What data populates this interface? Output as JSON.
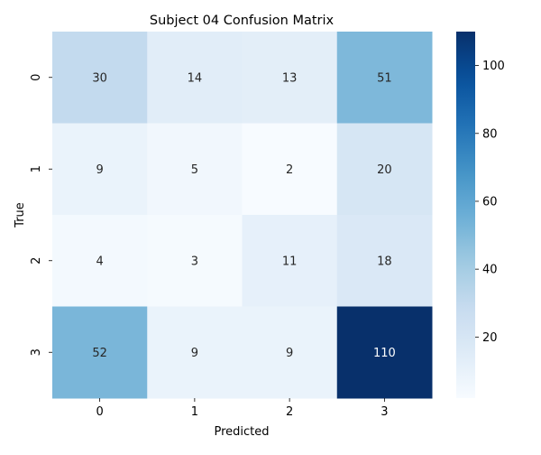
{
  "chart_data": {
    "type": "heatmap",
    "title": "Subject 04 Confusion Matrix",
    "xlabel": "Predicted",
    "ylabel": "True",
    "x_categories": [
      "0",
      "1",
      "2",
      "3"
    ],
    "y_categories": [
      "0",
      "1",
      "2",
      "3"
    ],
    "values": [
      [
        30,
        14,
        13,
        51
      ],
      [
        9,
        5,
        2,
        20
      ],
      [
        4,
        3,
        11,
        18
      ],
      [
        52,
        9,
        9,
        110
      ]
    ],
    "colormap": "Blues",
    "color_range": [
      2,
      110
    ],
    "colorbar_ticks": [
      20,
      40,
      60,
      80,
      100
    ],
    "colors": {
      "low": "#f7fbff",
      "high": "#08306b"
    }
  }
}
